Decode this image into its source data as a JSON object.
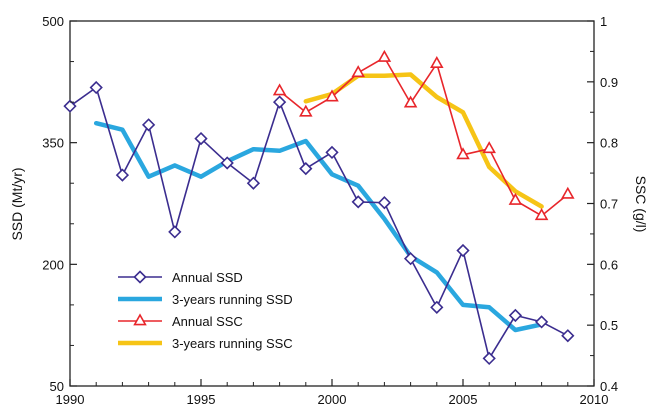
{
  "chart_data": {
    "type": "line",
    "x_axis": {
      "label": "",
      "range": [
        1990,
        2010
      ],
      "ticks": [
        1990,
        1995,
        2000,
        2005,
        2010
      ]
    },
    "y_left": {
      "label": "SSD (Mt/yr)",
      "range": [
        50,
        500
      ],
      "ticks": [
        50,
        200,
        350,
        500
      ]
    },
    "y_right": {
      "label": "SSC (g/l)",
      "range": [
        0.4,
        1.0
      ],
      "ticks": [
        0.4,
        0.5,
        0.6,
        0.7,
        0.8,
        0.9,
        1
      ]
    },
    "grid": false,
    "legend_position": "bottom-left",
    "series": [
      {
        "name": "Annual SSD",
        "axis": "left",
        "style": "line-diamond",
        "color": "#3b2d8f",
        "x": [
          1990,
          1991,
          1992,
          1993,
          1994,
          1995,
          1996,
          1997,
          1998,
          1999,
          2000,
          2001,
          2002,
          2003,
          2004,
          2005,
          2006,
          2007,
          2008,
          2009
        ],
        "y": [
          395,
          418,
          310,
          372,
          240,
          355,
          325,
          300,
          400,
          318,
          338,
          277,
          276,
          207,
          147,
          217,
          84,
          137,
          129,
          112
        ]
      },
      {
        "name": "3-years running SSD",
        "axis": "left",
        "style": "thick-line",
        "color": "#2aa7df",
        "x": [
          1991,
          1992,
          1993,
          1994,
          1995,
          1996,
          1997,
          1998,
          1999,
          2000,
          2001,
          2002,
          2003,
          2004,
          2005,
          2006,
          2007,
          2008
        ],
        "y": [
          374,
          366,
          308,
          322,
          308,
          327,
          342,
          340,
          352,
          311,
          297,
          256,
          210,
          190,
          150,
          147,
          119,
          126
        ]
      },
      {
        "name": "Annual SSC",
        "axis": "right",
        "style": "line-triangle",
        "color": "#e8262b",
        "x": [
          1998,
          1999,
          2000,
          2001,
          2002,
          2003,
          2004,
          2005,
          2006,
          2007,
          2008,
          2009
        ],
        "y": [
          0.885,
          0.85,
          0.875,
          0.915,
          0.94,
          0.865,
          0.93,
          0.78,
          0.79,
          0.705,
          0.68,
          0.715
        ]
      },
      {
        "name": "3-years running SSC",
        "axis": "right",
        "style": "thick-line",
        "color": "#f6c416",
        "x": [
          1999,
          2000,
          2001,
          2002,
          2003,
          2004,
          2005,
          2006,
          2007,
          2008
        ],
        "y": [
          0.868,
          0.88,
          0.91,
          0.91,
          0.912,
          0.875,
          0.85,
          0.76,
          0.72,
          0.695
        ]
      }
    ]
  }
}
